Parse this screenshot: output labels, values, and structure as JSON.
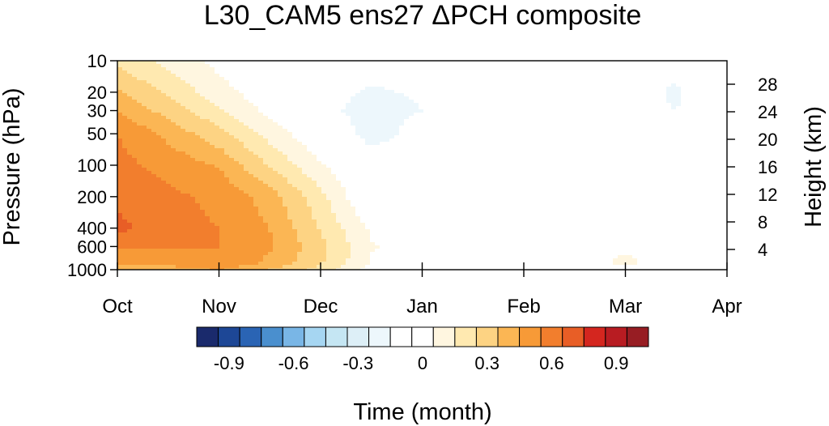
{
  "chart_data": {
    "type": "heatmap",
    "title": "L30_CAM5 ens27 ΔPCH composite",
    "xlabel": "Time (month)",
    "ylabel": "Pressure (hPa)",
    "ylabel_right": "Height (km)",
    "x_ticks": [
      "Oct",
      "Nov",
      "Dec",
      "Jan",
      "Feb",
      "Mar",
      "Apr"
    ],
    "y_ticks": [
      "10",
      "20",
      "30",
      "50",
      "100",
      "200",
      "400",
      "600",
      "1000"
    ],
    "y_tick_values": [
      10,
      20,
      30,
      50,
      100,
      200,
      400,
      600,
      1000
    ],
    "y_right_ticks": [
      "4",
      "8",
      "12",
      "16",
      "20",
      "24",
      "28"
    ],
    "y_right_tick_values": [
      4,
      8,
      12,
      16,
      20,
      24,
      28
    ],
    "ylim": [
      1000,
      10
    ],
    "y_scale": "log",
    "colorbar": {
      "levels": [
        -1.05,
        -0.95,
        -0.85,
        -0.75,
        -0.65,
        -0.55,
        -0.45,
        -0.35,
        -0.25,
        -0.15,
        -0.05,
        0.05,
        0.15,
        0.25,
        0.35,
        0.45,
        0.55,
        0.65,
        0.75,
        0.85,
        0.95,
        1.05
      ],
      "colors": [
        "#1a2a6c",
        "#1d4796",
        "#2a64b4",
        "#4a8fce",
        "#79b6e6",
        "#a6d6f2",
        "#c5e6f3",
        "#ddeff7",
        "#edf7fc",
        "#ffffff",
        "#ffffff",
        "#fff6e0",
        "#ffe9b0",
        "#fdd383",
        "#fbb654",
        "#f79a37",
        "#f27e2d",
        "#e85e26",
        "#d4261f",
        "#b81c22",
        "#971d23"
      ],
      "tick_labels": [
        "-0.9",
        "-0.6",
        "-0.3",
        "0",
        "0.3",
        "0.6",
        "0.9"
      ],
      "tick_values": [
        -0.9,
        -0.6,
        -0.3,
        0,
        0.3,
        0.6,
        0.9
      ]
    },
    "months": [
      0,
      0.5,
      1,
      1.5,
      2,
      2.5,
      3,
      3.5,
      4,
      4.5,
      5,
      5.5,
      6
    ],
    "levels_hpa": [
      10,
      20,
      30,
      50,
      100,
      200,
      400,
      600,
      850,
      1000
    ],
    "values": [
      [
        0.22,
        0.12,
        0.02,
        -0.05,
        -0.07,
        -0.11,
        -0.12,
        -0.08,
        -0.04,
        -0.05,
        -0.11,
        -0.13,
        -0.06
      ],
      [
        0.36,
        0.23,
        0.09,
        -0.02,
        -0.12,
        -0.16,
        -0.14,
        -0.08,
        -0.05,
        -0.06,
        -0.12,
        -0.16,
        -0.08
      ],
      [
        0.44,
        0.31,
        0.17,
        0.02,
        -0.12,
        -0.19,
        -0.15,
        -0.08,
        -0.05,
        -0.07,
        -0.13,
        -0.15,
        -0.08
      ],
      [
        0.55,
        0.42,
        0.28,
        0.11,
        -0.04,
        -0.2,
        -0.1,
        -0.07,
        -0.05,
        -0.08,
        -0.1,
        -0.1,
        -0.07
      ],
      [
        0.58,
        0.52,
        0.44,
        0.24,
        0.06,
        -0.08,
        -0.07,
        -0.06,
        -0.02,
        -0.06,
        -0.08,
        -0.09,
        -0.08
      ],
      [
        0.62,
        0.57,
        0.53,
        0.4,
        0.18,
        -0.07,
        -0.06,
        -0.04,
        -0.02,
        -0.04,
        -0.06,
        -0.08,
        -0.09
      ],
      [
        0.68,
        0.58,
        0.55,
        0.45,
        0.24,
        0.03,
        -0.03,
        -0.02,
        -0.01,
        -0.03,
        -0.05,
        -0.07,
        -0.08
      ],
      [
        0.57,
        0.56,
        0.55,
        0.46,
        0.28,
        0.06,
        -0.01,
        -0.01,
        -0.01,
        -0.02,
        0.02,
        -0.04,
        -0.06
      ],
      [
        0.48,
        0.5,
        0.54,
        0.43,
        0.27,
        0.04,
        -0.01,
        -0.01,
        -0.02,
        -0.01,
        0.08,
        -0.02,
        -0.07
      ],
      [
        0.38,
        0.4,
        0.46,
        0.35,
        0.21,
        0.0,
        -0.01,
        -0.01,
        -0.06,
        -0.02,
        -0.01,
        -0.03,
        -0.1
      ]
    ]
  }
}
